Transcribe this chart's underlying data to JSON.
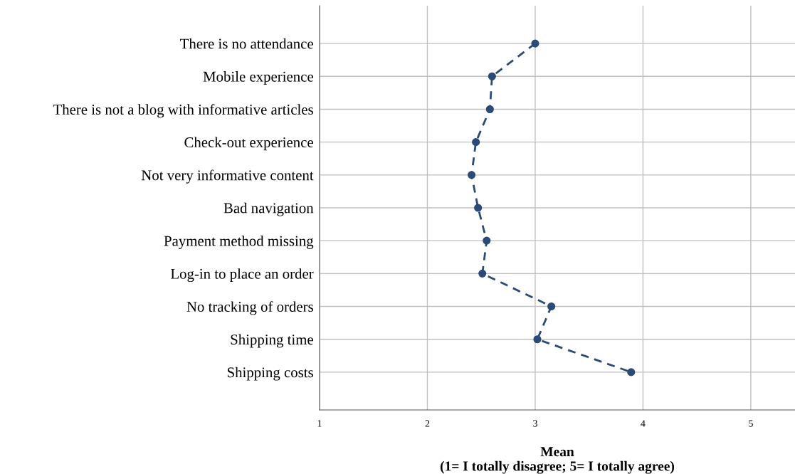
{
  "chart_data": {
    "type": "line",
    "orientation": "horizontal",
    "categories": [
      "There is no attendance",
      "Mobile experience",
      "There is not a blog with informative articles",
      "Check-out experience",
      "Not very informative content",
      "Bad navigation",
      "Payment method missing",
      "Log-in to place an order",
      "No tracking of orders",
      "Shipping time",
      "Shipping costs"
    ],
    "series": [
      {
        "color": "#2b4a77",
        "values": [
          3.0,
          2.6,
          2.58,
          2.45,
          2.41,
          2.47,
          2.55,
          2.51,
          3.15,
          3.02,
          3.89
        ]
      }
    ],
    "xlabel": "Mean\n(1= I totally disagree; 5= I totally agree)",
    "xlim": [
      1,
      5.41
    ],
    "xticks": [
      1,
      2,
      3,
      4,
      5
    ],
    "grid": true,
    "marker": "circle",
    "line_style": "dashed"
  }
}
